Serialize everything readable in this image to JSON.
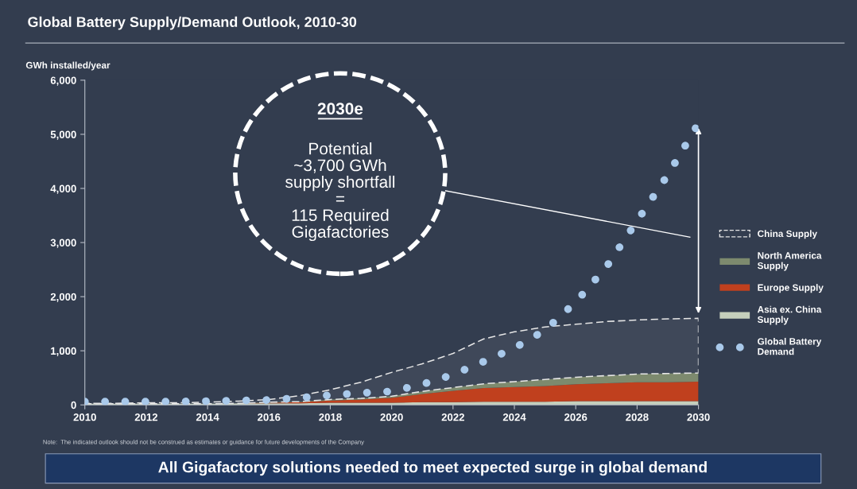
{
  "chart_data": {
    "type": "area",
    "stacked": true,
    "title": "Global Battery Supply/Demand Outlook, 2010-30",
    "ylabel": "GWh installed/year",
    "x": [
      2010,
      2011,
      2012,
      2013,
      2014,
      2015,
      2016,
      2017,
      2018,
      2019,
      2020,
      2021,
      2022,
      2023,
      2024,
      2025,
      2026,
      2027,
      2028,
      2029,
      2030
    ],
    "series": [
      {
        "name": "Asia ex. China Supply",
        "color": "#c5cfbc",
        "values": [
          20,
          20,
          20,
          20,
          20,
          30,
          30,
          30,
          40,
          40,
          40,
          50,
          50,
          60,
          60,
          60,
          70,
          70,
          70,
          70,
          70
        ]
      },
      {
        "name": "Europe Supply",
        "color": "#c0401e",
        "values": [
          0,
          0,
          0,
          0,
          0,
          0,
          10,
          20,
          40,
          60,
          90,
          150,
          210,
          250,
          270,
          290,
          310,
          330,
          350,
          350,
          360
        ]
      },
      {
        "name": "North America Supply",
        "color": "#7d8a6e",
        "values": [
          0,
          0,
          0,
          0,
          0,
          0,
          10,
          10,
          20,
          20,
          30,
          50,
          60,
          80,
          100,
          120,
          130,
          140,
          150,
          160,
          160
        ]
      },
      {
        "name": "China Supply",
        "color": "#e6e6e6",
        "line_style": "dashed",
        "values": [
          10,
          10,
          20,
          20,
          30,
          40,
          50,
          110,
          180,
          300,
          440,
          510,
          630,
          830,
          920,
          970,
          980,
          1000,
          1000,
          1010,
          1010
        ]
      },
      {
        "name": "Global Battery Demand",
        "type": "line",
        "color": "#a9c9ea",
        "line_style": "dotted",
        "values": [
          60,
          60,
          60,
          60,
          70,
          80,
          90,
          130,
          180,
          220,
          250,
          380,
          560,
          800,
          1050,
          1380,
          1900,
          2550,
          3400,
          4250,
          5200
        ]
      }
    ],
    "xlim": [
      2010,
      2030
    ],
    "xticks": [
      2010,
      2012,
      2014,
      2016,
      2018,
      2020,
      2022,
      2024,
      2026,
      2028,
      2030
    ],
    "ylim": [
      0,
      6000
    ],
    "yticks": [
      0,
      {
        "value": 1000,
        "label": "1,000"
      },
      {
        "value": 2000,
        "label": "2,000"
      },
      {
        "value": 3000,
        "label": "3,000"
      },
      {
        "value": 4000,
        "label": "4,000"
      },
      {
        "value": 5000,
        "label": "5,000"
      },
      {
        "value": 6000,
        "label": "6,000"
      }
    ],
    "legend": "right",
    "annotations": [
      "2030e",
      "Potential\n~3,700 GWh\nsupply shortfall\n=\n115 Required\nGigafactories",
      "Note:  The indicated outlook should not be construed as estimates or guidance for future developments of the Company",
      "All Gigafactory solutions needed to meet expected surge in global demand"
    ]
  }
}
